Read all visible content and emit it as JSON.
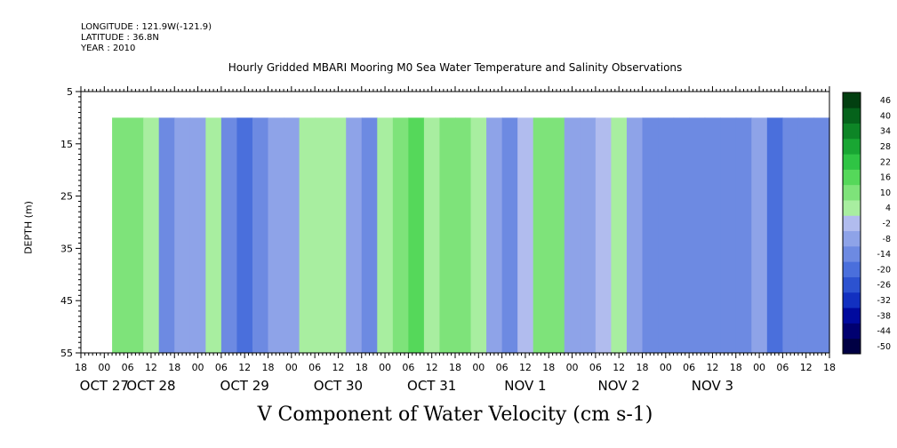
{
  "header": {
    "longitude": "LONGITUDE : 121.9W(-121.9)",
    "latitude": "LATITUDE : 36.8N",
    "year": "YEAR : 2010"
  },
  "chart_data": {
    "type": "heatmap",
    "title": "Hourly Gridded MBARI Mooring M0 Sea Water Temperature and Salinity Observations",
    "xlabel": "V Component of Water Velocity (cm s-1)",
    "ylabel": "DEPTH (m)",
    "ylim": [
      55,
      5
    ],
    "y_ticks": [
      5,
      15,
      25,
      35,
      45,
      55
    ],
    "data_depth_range": [
      10,
      55
    ],
    "x_hour_range": [
      -6,
      186
    ],
    "x_ticks_hours": [
      -6,
      0,
      6,
      12,
      18,
      24,
      30,
      36,
      42,
      48,
      54,
      60,
      66,
      72,
      78,
      84,
      90,
      96,
      102,
      108,
      114,
      120,
      126,
      132,
      138,
      144,
      150,
      156,
      162,
      168,
      174,
      180,
      186
    ],
    "x_tick_labels": [
      "18",
      "00",
      "06",
      "12",
      "18",
      "00",
      "06",
      "12",
      "18",
      "00",
      "06",
      "12",
      "18",
      "00",
      "06",
      "12",
      "18",
      "00",
      "06",
      "12",
      "18",
      "00",
      "06",
      "12",
      "18",
      "00",
      "06",
      "12",
      "18",
      "00",
      "06",
      "12",
      "18"
    ],
    "day_labels": [
      {
        "label": "OCT 27",
        "hour": 0
      },
      {
        "label": "OCT 28",
        "hour": 12
      },
      {
        "label": "OCT 29",
        "hour": 36
      },
      {
        "label": "OCT 30",
        "hour": 60
      },
      {
        "label": "OCT 31",
        "hour": 84
      },
      {
        "label": "NOV  1",
        "hour": 108
      },
      {
        "label": "NOV  2",
        "hour": 132
      },
      {
        "label": "NOV  3",
        "hour": 156
      }
    ],
    "colorbar": {
      "levels": [
        -50,
        -44,
        -38,
        -32,
        -26,
        -20,
        -14,
        -8,
        -2,
        4,
        10,
        16,
        22,
        28,
        34,
        40,
        46
      ],
      "labels": [
        "46",
        "40",
        "34",
        "28",
        "22",
        "16",
        "10",
        "4",
        "-2",
        "-8",
        "-14",
        "-20",
        "-26",
        "-32",
        "-38",
        "-44",
        "-50"
      ],
      "colors": [
        "#000044",
        "#000070",
        "#000a9e",
        "#1230c0",
        "#2c52d0",
        "#4a6fdc",
        "#6d8ae2",
        "#8ea3e8",
        "#b1bcee",
        "#a8eea0",
        "#7ee37a",
        "#55d85a",
        "#2fc444",
        "#19a633",
        "#0d8526",
        "#05631b",
        "#023f10"
      ]
    },
    "columns": {
      "start_hour": 2,
      "step_hours": 4,
      "values": [
        10,
        12,
        4,
        -12,
        -8,
        -6,
        5,
        -14,
        -18,
        -10,
        -6,
        -4,
        6,
        8,
        4,
        -8,
        -14,
        4,
        14,
        16,
        8,
        10,
        10,
        8,
        -4,
        -12,
        2,
        10,
        14,
        -8,
        -6,
        2,
        4,
        -8,
        -10,
        -12,
        -10,
        -14,
        -12,
        -10,
        -14,
        -8,
        -16,
        -14,
        -12,
        -14,
        -8
      ]
    }
  }
}
